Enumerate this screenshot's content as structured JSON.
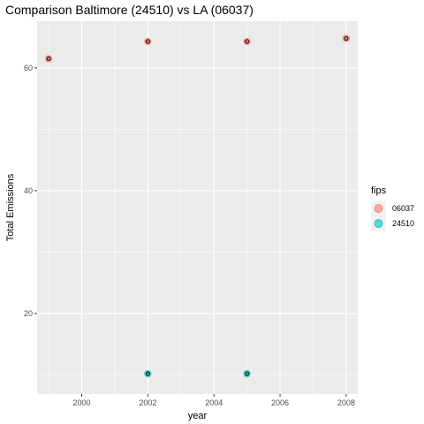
{
  "chart_data": {
    "type": "scatter",
    "title": "Comparison Baltimore (24510) vs LA (06037)",
    "xlabel": "year",
    "ylabel": "Total Emissions",
    "xlim": [
      1998.65,
      2008.35
    ],
    "ylim": [
      6.9,
      67.6
    ],
    "x_ticks": [
      2000,
      2002,
      2004,
      2006,
      2008
    ],
    "y_ticks": [
      20,
      40,
      60
    ],
    "grid": true,
    "legend": {
      "title": "fips",
      "placement": "right"
    },
    "series": [
      {
        "name": "06037",
        "color": "#F8766D",
        "points": [
          [
            1999,
            61.5
          ],
          [
            2002,
            64.3
          ],
          [
            2005,
            64.3
          ],
          [
            2008,
            64.8
          ]
        ]
      },
      {
        "name": "24510",
        "color": "#00BFC4",
        "points": [
          [
            2002,
            10.2
          ],
          [
            2005,
            10.2
          ]
        ]
      }
    ]
  }
}
